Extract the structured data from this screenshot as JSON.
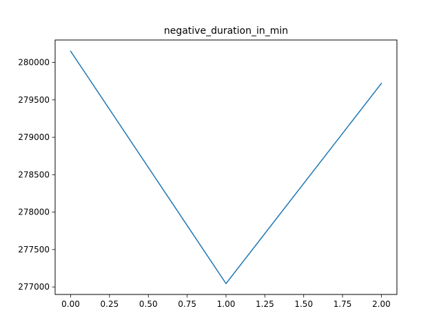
{
  "chart_data": {
    "type": "line",
    "title": "negative_duration_in_min",
    "xlabel": "",
    "ylabel": "",
    "x": [
      0,
      1,
      2
    ],
    "series": [
      {
        "values": [
          280150,
          277045,
          279720
        ],
        "color": "#1f77b4"
      }
    ],
    "xlim": [
      -0.1,
      2.1
    ],
    "ylim": [
      276900,
      280300
    ],
    "x_ticks": [
      {
        "value": 0.0,
        "label": "0.00"
      },
      {
        "value": 0.25,
        "label": "0.25"
      },
      {
        "value": 0.5,
        "label": "0.50"
      },
      {
        "value": 0.75,
        "label": "0.75"
      },
      {
        "value": 1.0,
        "label": "1.00"
      },
      {
        "value": 1.25,
        "label": "1.25"
      },
      {
        "value": 1.5,
        "label": "1.50"
      },
      {
        "value": 1.75,
        "label": "1.75"
      },
      {
        "value": 2.0,
        "label": "2.00"
      }
    ],
    "y_ticks": [
      {
        "value": 277000,
        "label": "277000"
      },
      {
        "value": 277500,
        "label": "277500"
      },
      {
        "value": 278000,
        "label": "278000"
      },
      {
        "value": 278500,
        "label": "278500"
      },
      {
        "value": 279000,
        "label": "279000"
      },
      {
        "value": 279500,
        "label": "279500"
      },
      {
        "value": 280000,
        "label": "280000"
      }
    ],
    "grid": false,
    "legend": "none"
  }
}
